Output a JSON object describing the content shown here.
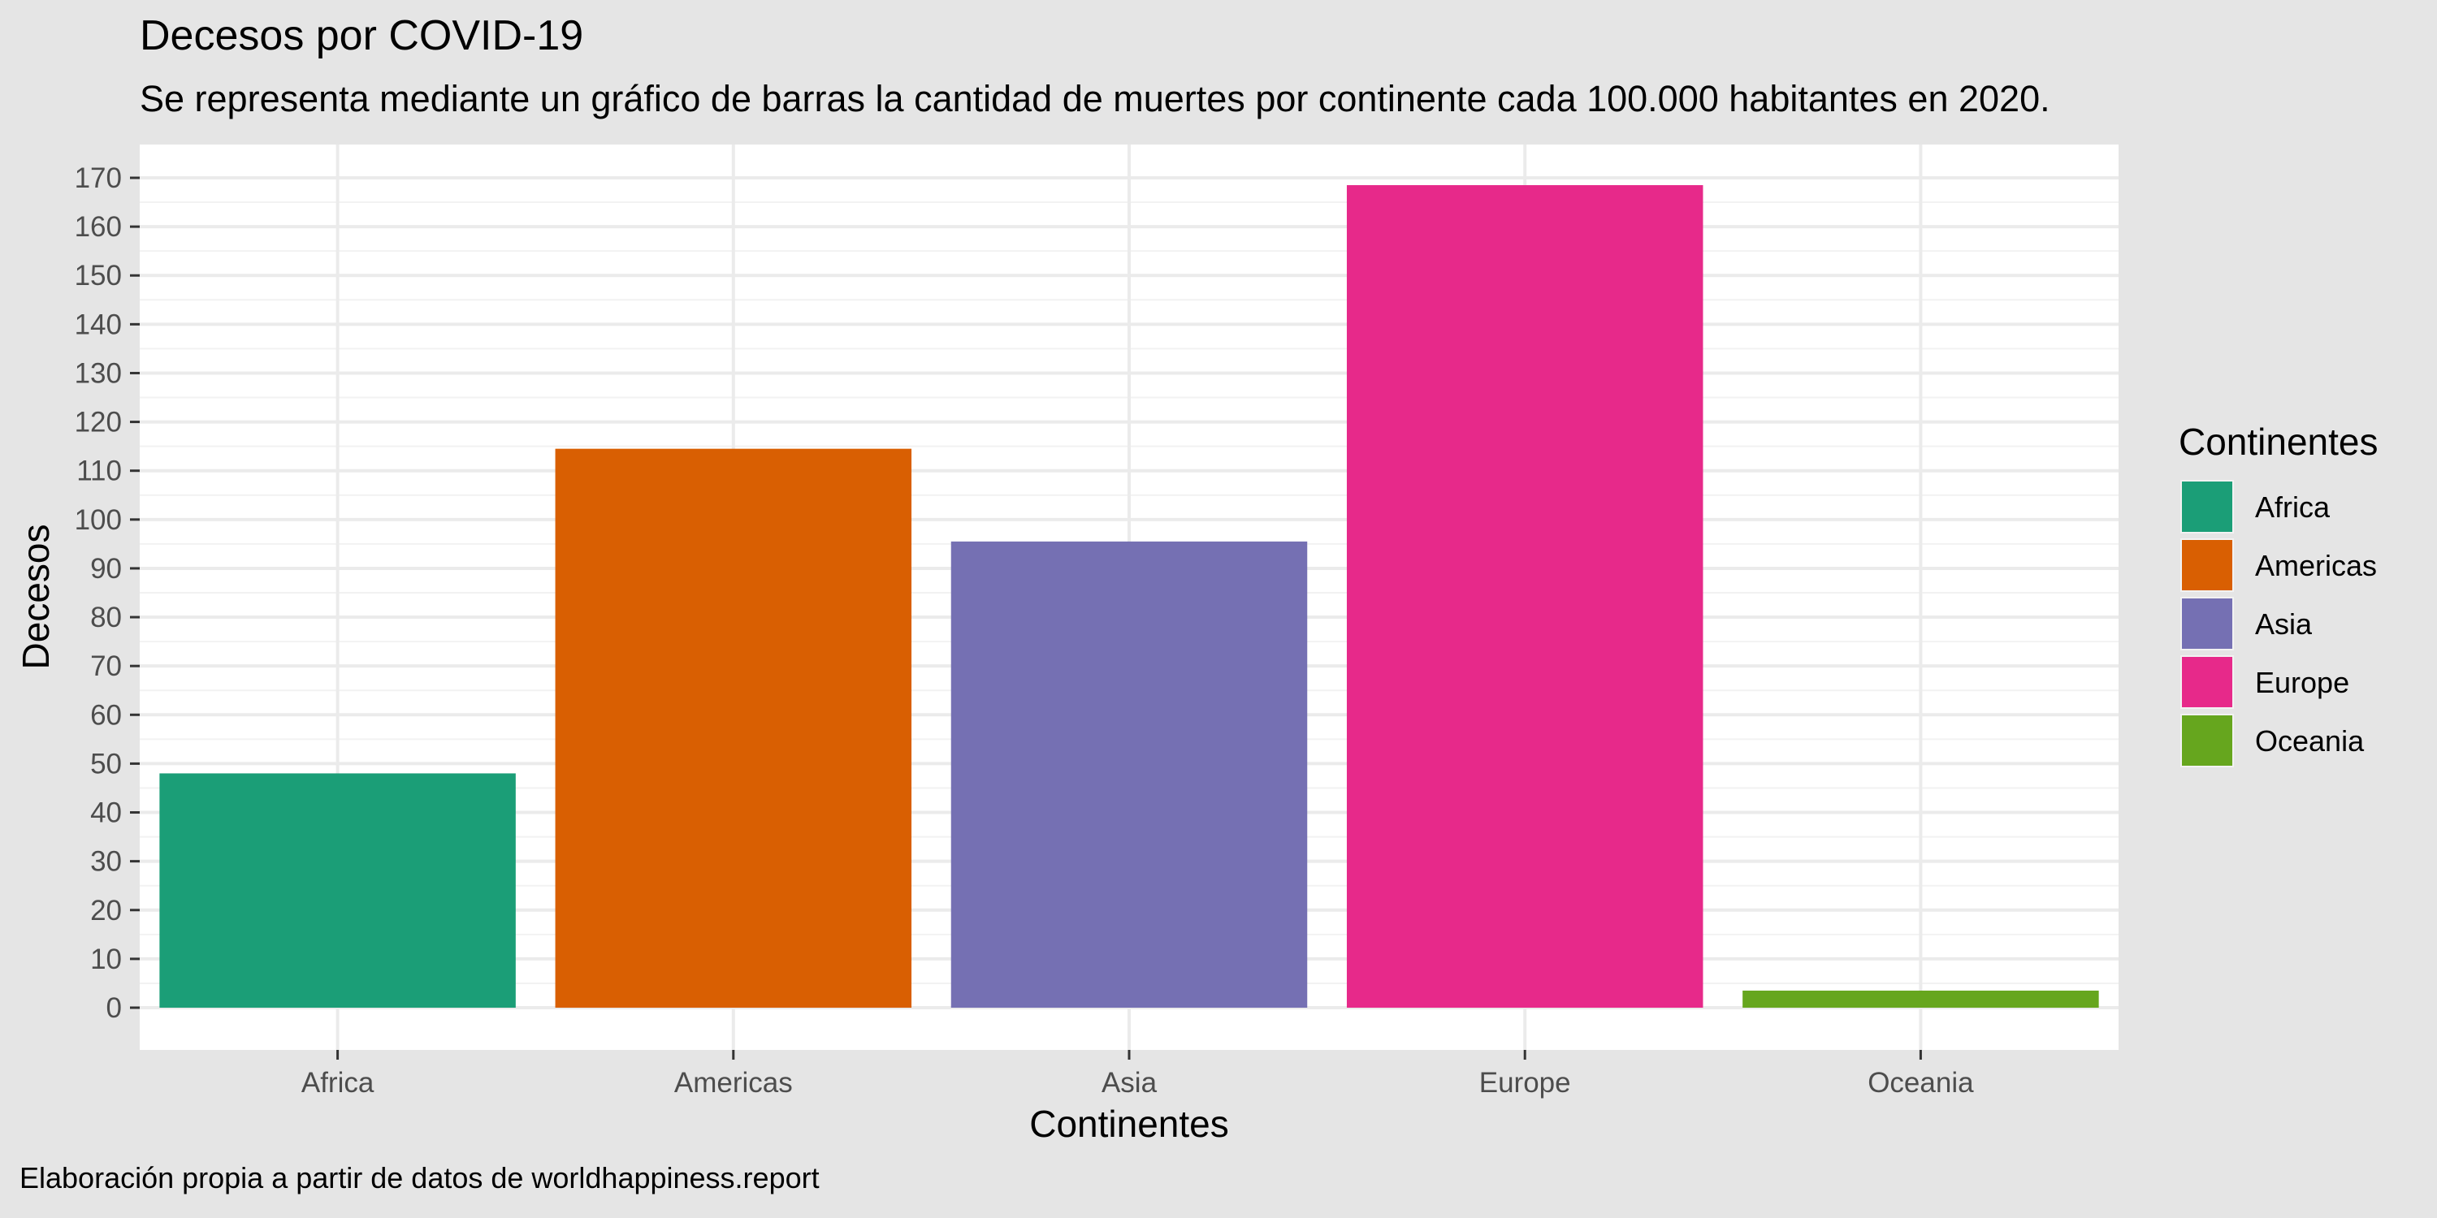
{
  "chart_data": {
    "type": "bar",
    "title": "Decesos por COVID-19",
    "subtitle": "Se representa mediante un gráfico de barras la cantidad de muertes por continente cada 100.000 habitantes en 2020.",
    "caption": "Elaboración propia a partir de datos de worldhappiness.report",
    "xlabel": "Continentes",
    "ylabel": "Decesos",
    "categories": [
      "Africa",
      "Americas",
      "Asia",
      "Europe",
      "Oceania"
    ],
    "values": [
      48,
      114.5,
      95.5,
      168.5,
      3.5
    ],
    "colors": [
      "#1b9e77",
      "#d95f02",
      "#7570b3",
      "#e7298a",
      "#66a61e"
    ],
    "ylim": [
      0,
      172
    ],
    "yticks": [
      "0",
      "10",
      "20",
      "30",
      "40",
      "50",
      "60",
      "70",
      "80",
      "90",
      "100",
      "110",
      "120",
      "130",
      "140",
      "150",
      "160",
      "170"
    ],
    "grid": true,
    "legend": {
      "title": "Continentes",
      "position": "right",
      "entries": [
        "Africa",
        "Americas",
        "Asia",
        "Europe",
        "Oceania"
      ]
    }
  }
}
